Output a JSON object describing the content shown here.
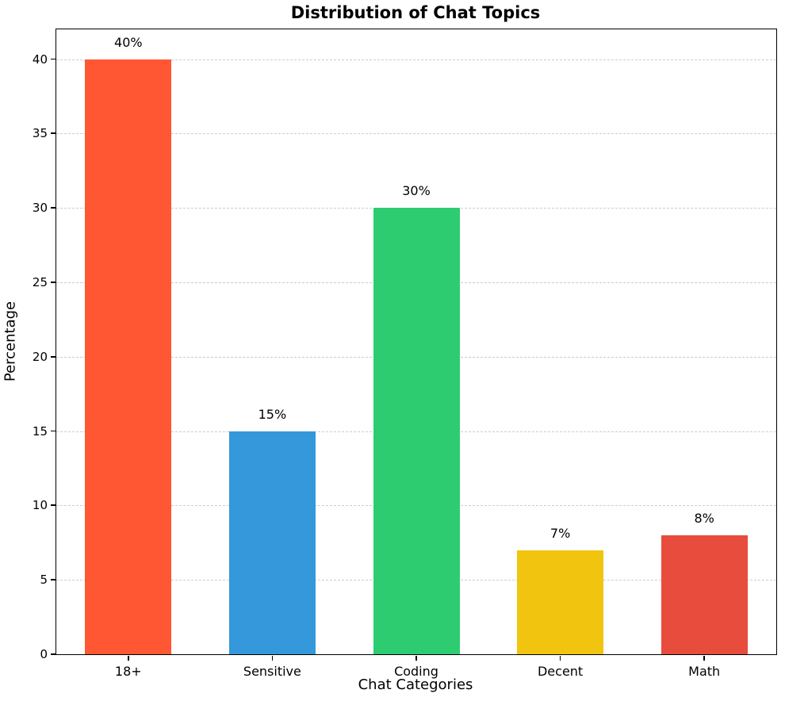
{
  "chart_data": {
    "type": "bar",
    "title": "Distribution of Chat Topics",
    "xlabel": "Chat Categories",
    "ylabel": "Percentage",
    "categories": [
      "18+",
      "Sensitive",
      "Coding",
      "Decent",
      "Math"
    ],
    "values": [
      40,
      15,
      30,
      7,
      8
    ],
    "value_labels": [
      "40%",
      "15%",
      "30%",
      "7%",
      "8%"
    ],
    "bar_colors": [
      "#FF5733",
      "#3498DB",
      "#2ECC71",
      "#F1C40F",
      "#E74C3C"
    ],
    "yticks": [
      0,
      5,
      10,
      15,
      20,
      25,
      30,
      35,
      40
    ],
    "ytick_labels": [
      "0",
      "5",
      "10",
      "15",
      "20",
      "25",
      "30",
      "35",
      "40"
    ],
    "ylim": [
      0,
      42
    ],
    "grid": "horizontal-dashed",
    "grid_color": "#cdcdcd",
    "background_color": "#ffffff",
    "legend": "none"
  }
}
